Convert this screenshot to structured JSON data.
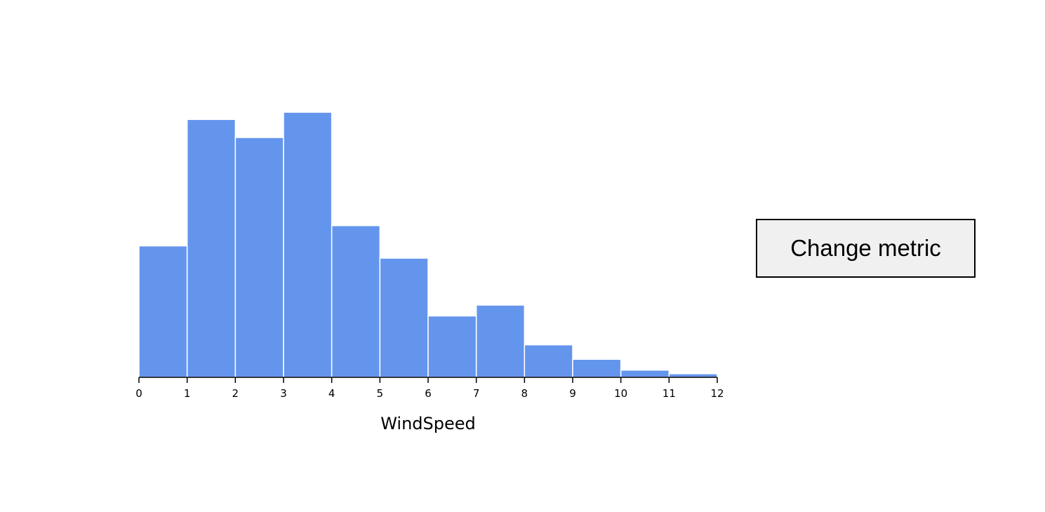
{
  "chart_data": {
    "type": "bar",
    "xlabel": "WindSpeed",
    "ylabel": "",
    "bin_edges": [
      0,
      1,
      2,
      3,
      4,
      5,
      6,
      7,
      8,
      9,
      10,
      11,
      12
    ],
    "values": [
      182,
      357,
      332,
      367,
      210,
      165,
      85,
      100,
      45,
      25,
      10,
      5
    ],
    "xticks": [
      "0",
      "1",
      "2",
      "3",
      "4",
      "5",
      "6",
      "7",
      "8",
      "9",
      "10",
      "11",
      "12"
    ],
    "xlim": [
      0,
      12
    ],
    "ylim": [
      0,
      367
    ],
    "grid": false,
    "bar_color": "#6495ED"
  },
  "controls": {
    "change_metric_label": "Change metric"
  }
}
